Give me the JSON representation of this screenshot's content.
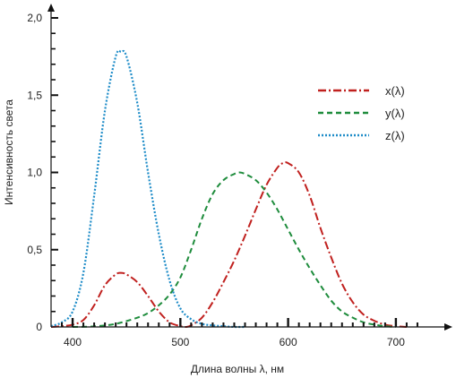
{
  "chart_data": {
    "type": "line",
    "xlabel": "Длина волны λ, нм",
    "ylabel": "Интенсивность света",
    "xlim": [
      380,
      740
    ],
    "ylim": [
      0,
      2.0
    ],
    "x_ticks": [
      {
        "value": 400,
        "label": "400"
      },
      {
        "value": 500,
        "label": "500"
      },
      {
        "value": 600,
        "label": "600"
      },
      {
        "value": 700,
        "label": "700"
      }
    ],
    "y_ticks": [
      {
        "value": 0,
        "label": "0"
      },
      {
        "value": 0.5,
        "label": "0,5"
      },
      {
        "value": 1.0,
        "label": "1,0"
      },
      {
        "value": 1.5,
        "label": "1,5"
      },
      {
        "value": 2.0,
        "label": "2,0"
      }
    ],
    "grid": false,
    "legend_position": "top-right",
    "series": [
      {
        "name": "x(λ)",
        "color": "#c0201e",
        "style": "dash-dot",
        "x": [
          380,
          390,
          400,
          410,
          420,
          430,
          440,
          445,
          450,
          460,
          470,
          480,
          490,
          500,
          505,
          510,
          520,
          530,
          540,
          550,
          560,
          570,
          580,
          590,
          595,
          600,
          610,
          620,
          630,
          640,
          650,
          660,
          670,
          680,
          690,
          700,
          710
        ],
        "y": [
          0.0,
          0.005,
          0.015,
          0.045,
          0.14,
          0.27,
          0.34,
          0.35,
          0.34,
          0.29,
          0.2,
          0.1,
          0.03,
          0.005,
          0.0,
          0.01,
          0.06,
          0.16,
          0.29,
          0.43,
          0.59,
          0.76,
          0.92,
          1.03,
          1.06,
          1.06,
          1.0,
          0.85,
          0.64,
          0.45,
          0.28,
          0.16,
          0.08,
          0.04,
          0.015,
          0.005,
          0.0
        ]
      },
      {
        "name": "y(λ)",
        "color": "#1e8c3c",
        "style": "dashed",
        "x": [
          400,
          420,
          440,
          460,
          470,
          480,
          490,
          500,
          510,
          520,
          530,
          540,
          550,
          555,
          560,
          570,
          580,
          590,
          600,
          610,
          620,
          630,
          640,
          650,
          660,
          670,
          680,
          690,
          700
        ],
        "y": [
          0.0,
          0.004,
          0.02,
          0.06,
          0.09,
          0.14,
          0.21,
          0.32,
          0.5,
          0.7,
          0.86,
          0.95,
          0.99,
          1.0,
          0.99,
          0.95,
          0.87,
          0.76,
          0.63,
          0.5,
          0.38,
          0.27,
          0.17,
          0.1,
          0.06,
          0.03,
          0.015,
          0.005,
          0.0
        ]
      },
      {
        "name": "z(λ)",
        "color": "#1e8cc8",
        "style": "dotted",
        "x": [
          380,
          390,
          400,
          410,
          420,
          430,
          440,
          445,
          450,
          460,
          470,
          480,
          490,
          500,
          510,
          520,
          530,
          540,
          550,
          560
        ],
        "y": [
          0.005,
          0.03,
          0.1,
          0.35,
          0.85,
          1.4,
          1.75,
          1.78,
          1.75,
          1.45,
          1.0,
          0.6,
          0.3,
          0.12,
          0.05,
          0.02,
          0.01,
          0.005,
          0.0,
          0.0
        ]
      }
    ]
  }
}
